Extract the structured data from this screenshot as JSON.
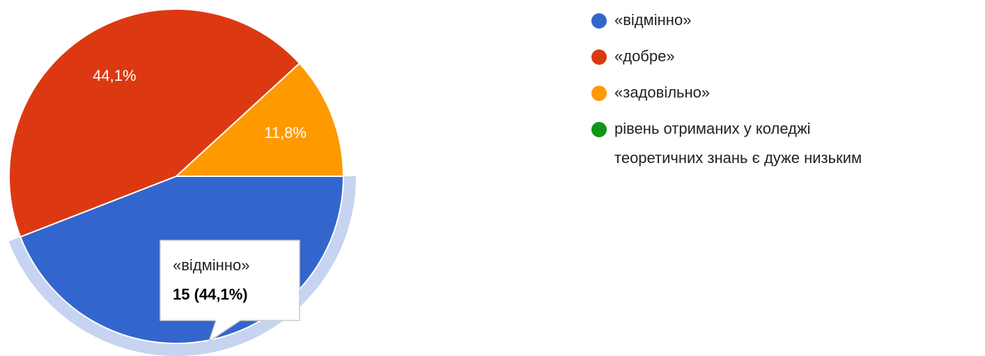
{
  "chart_data": {
    "type": "pie",
    "categories": [
      "«відмінно»",
      "«добре»",
      "«задовільно»",
      "рівень отриманих у коледжі теоретичних знань є дуже низьким"
    ],
    "legend_lines": [
      [
        "«відмінно»"
      ],
      [
        "«добре»"
      ],
      [
        "«задовільно»"
      ],
      [
        "рівень отриманих у коледжі",
        "теоретичних знань є дуже низьким"
      ]
    ],
    "values": [
      44.1,
      44.1,
      11.8,
      0
    ],
    "value_labels": [
      null,
      "44,1%",
      "11,8%",
      null
    ],
    "colors": [
      "#3366cc",
      "#dc3912",
      "#ff9900",
      "#109618"
    ],
    "tooltip": {
      "text": "15 (44,1%)"
    }
  }
}
